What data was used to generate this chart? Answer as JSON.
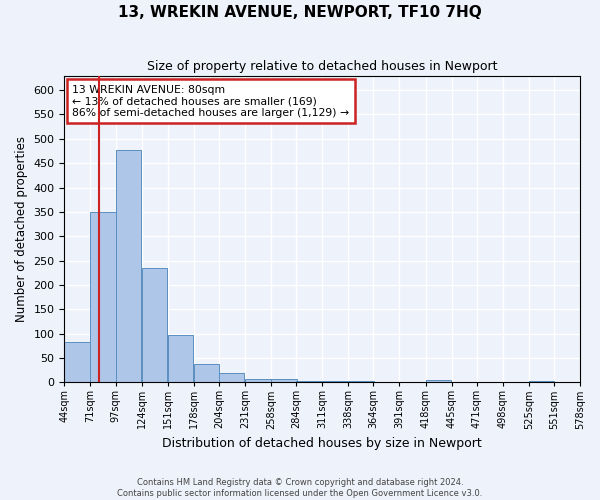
{
  "title1": "13, WREKIN AVENUE, NEWPORT, TF10 7HQ",
  "title2": "Size of property relative to detached houses in Newport",
  "xlabel": "Distribution of detached houses by size in Newport",
  "ylabel": "Number of detached properties",
  "annotation_line1": "13 WREKIN AVENUE: 80sqm",
  "annotation_line2": "← 13% of detached houses are smaller (169)",
  "annotation_line3": "86% of semi-detached houses are larger (1,129) →",
  "footer1": "Contains HM Land Registry data © Crown copyright and database right 2024.",
  "footer2": "Contains public sector information licensed under the Open Government Licence v3.0.",
  "property_size": 80,
  "bin_lefts": [
    44,
    71,
    97,
    124,
    151,
    178,
    204,
    231,
    258,
    284,
    311,
    338,
    364,
    391,
    418,
    445,
    471,
    498,
    525,
    551
  ],
  "bar_heights": [
    83,
    350,
    477,
    235,
    97,
    38,
    18,
    7,
    6,
    3,
    2,
    2,
    0,
    0,
    5,
    0,
    0,
    0,
    2,
    0
  ],
  "bin_width": 27,
  "x_ticks": [
    44,
    71,
    97,
    124,
    151,
    178,
    204,
    231,
    258,
    284,
    311,
    338,
    364,
    391,
    418,
    445,
    471,
    498,
    525,
    551,
    578
  ],
  "bar_color": "#aec6e8",
  "bar_edge_color": "#5a8fc0",
  "vline_color": "#cc2222",
  "annotation_box_color": "#cc2222",
  "background_color": "#eef2fa",
  "grid_color": "#ffffff",
  "ylim": [
    0,
    630
  ],
  "yticks": [
    0,
    50,
    100,
    150,
    200,
    250,
    300,
    350,
    400,
    450,
    500,
    550,
    600
  ]
}
